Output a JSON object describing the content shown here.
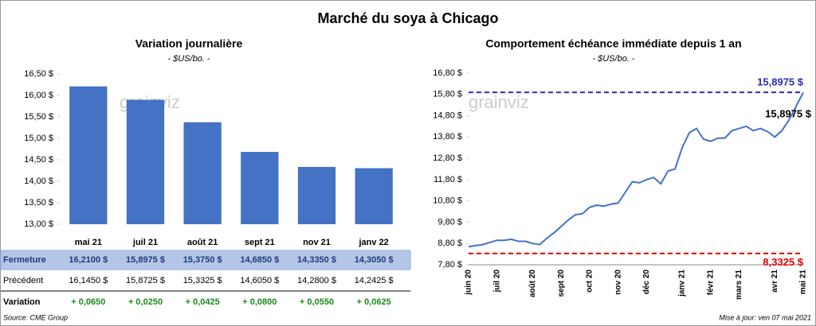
{
  "title": "Marché du soya à Chicago",
  "source": "Source: CME Group",
  "updated": "Mise à jour: ven 07 mai 2021",
  "watermark": "grainviz",
  "chart_data": [
    {
      "type": "bar",
      "title": "Variation journalière",
      "subtitle": "- $US/bo. -",
      "categories": [
        "mai 21",
        "juil 21",
        "août 21",
        "sept 21",
        "nov 21",
        "janv 22"
      ],
      "values": [
        16.21,
        15.8975,
        15.375,
        14.685,
        14.335,
        14.305
      ],
      "color": "#4472c4",
      "ylim": [
        13,
        16.5
      ],
      "yticks": [
        {
          "value": 13,
          "label": "13,00 $"
        },
        {
          "value": 13.5,
          "label": "13,50 $"
        },
        {
          "value": 14,
          "label": "14,00 $"
        },
        {
          "value": 14.5,
          "label": "14,50 $"
        },
        {
          "value": 15,
          "label": "15,00 $"
        },
        {
          "value": 15.5,
          "label": "15,50 $"
        },
        {
          "value": 16,
          "label": "16,00 $"
        },
        {
          "value": 16.5,
          "label": "16,50 $"
        }
      ]
    },
    {
      "type": "line",
      "title": "Comportement  échéance immédiate depuis 1 an",
      "subtitle": "- $US/bo. -",
      "categories": [
        "juin 20",
        null,
        null,
        null,
        "juil 20",
        null,
        null,
        null,
        null,
        "août 20",
        null,
        null,
        null,
        "sept 20",
        null,
        null,
        null,
        "oct 20",
        null,
        null,
        null,
        "nov 20",
        null,
        null,
        null,
        "déc 20",
        null,
        null,
        null,
        null,
        "janv 21",
        null,
        null,
        null,
        "févr 21",
        null,
        null,
        null,
        "mars 21",
        null,
        null,
        null,
        null,
        "avr 21",
        null,
        null,
        null,
        "mai 21"
      ],
      "values": [
        8.65,
        8.7,
        8.75,
        8.85,
        8.95,
        8.95,
        9.0,
        8.9,
        8.9,
        8.8,
        8.75,
        9.05,
        9.3,
        9.6,
        9.9,
        10.15,
        10.2,
        10.5,
        10.6,
        10.55,
        10.65,
        10.7,
        11.2,
        11.7,
        11.65,
        11.8,
        11.9,
        11.6,
        12.2,
        12.3,
        13.3,
        14.0,
        14.2,
        13.7,
        13.6,
        13.75,
        13.75,
        14.1,
        14.2,
        14.3,
        14.1,
        14.2,
        14.05,
        13.8,
        14.1,
        14.6,
        15.25,
        15.8975
      ],
      "color": "#4472c4",
      "ylim": [
        7.8,
        16.8
      ],
      "yticks": [
        {
          "value": 7.8,
          "label": "7,80 $"
        },
        {
          "value": 8.8,
          "label": "8,80 $"
        },
        {
          "value": 9.8,
          "label": "9,80 $"
        },
        {
          "value": 10.8,
          "label": "10,80 $"
        },
        {
          "value": 11.8,
          "label": "11,80 $"
        },
        {
          "value": 12.8,
          "label": "12,80 $"
        },
        {
          "value": 13.8,
          "label": "13,80 $"
        },
        {
          "value": 14.8,
          "label": "14,80 $"
        },
        {
          "value": 15.8,
          "label": "15,80 $"
        },
        {
          "value": 16.8,
          "label": "16,80 $"
        }
      ],
      "reference_lines": [
        {
          "value": 15.8975,
          "label": "15,8975 $",
          "color": "#2b2bb5"
        },
        {
          "value": 8.3325,
          "label": "8,3325 $",
          "color": "#e00000"
        }
      ],
      "last_label": {
        "value": 15.8975,
        "label": "15,8975 $"
      }
    }
  ],
  "table": {
    "rows": [
      {
        "label": "Fermeture",
        "cells": [
          "16,2100  $",
          "15,8975  $",
          "15,3750  $",
          "14,6850  $",
          "14,3350  $",
          "14,3050  $"
        ]
      },
      {
        "label": "Précédent",
        "cells": [
          "16,1450  $",
          "15,8725  $",
          "15,3325  $",
          "14,6050  $",
          "14,2800  $",
          "14,2425  $"
        ]
      },
      {
        "label": "Variation",
        "cells": [
          "+ 0,0650",
          "+ 0,0250",
          "+ 0,0425",
          "+ 0,0800",
          "+ 0,0550",
          "+ 0,0625"
        ]
      }
    ]
  }
}
